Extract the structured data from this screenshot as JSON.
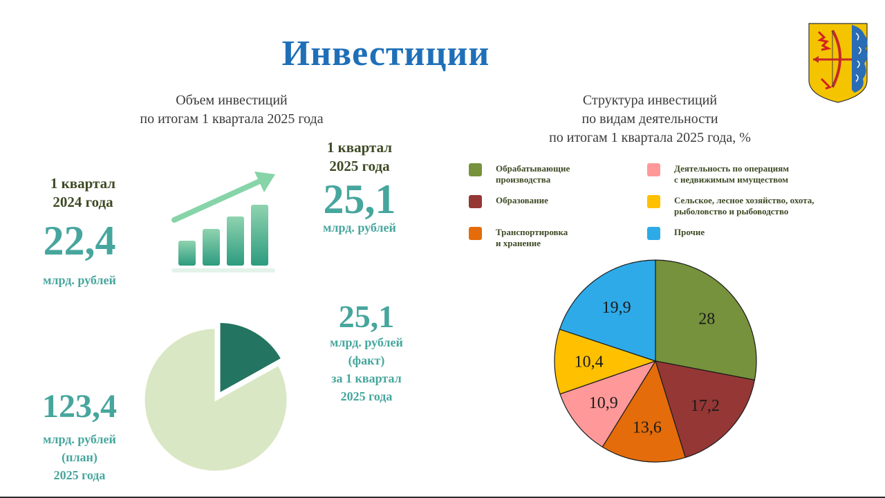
{
  "title": "Инвестиции",
  "left": {
    "subtitle": "Объем инвестиций\nпо итогам 1 квартала 2025 года",
    "q2024": {
      "label": "1 квартал\n2024 года",
      "value": "22,4",
      "unit": "млрд. рублей"
    },
    "q2025": {
      "label": "1 квартал\n2025 года",
      "value": "25,1",
      "unit": "млрд. рублей"
    },
    "plan": {
      "value": "123,4",
      "unit": "млрд. рублей\n(план)\n2025 года"
    },
    "fact": {
      "value": "25,1",
      "unit": "млрд. рублей\n(факт)\nза 1 квартал\n2025 года"
    },
    "growth_icon": "bar-growth-arrow-icon"
  },
  "right": {
    "subtitle": "Структура инвестиций\nпо видам деятельности\nпо итогам 1 квартала 2025 года, %"
  },
  "emblem_icon": "coat-of-arms-icon",
  "chart_data": [
    {
      "type": "pie",
      "title": "",
      "categories": [
        "123,4",
        "25,1"
      ],
      "values": [
        123.4,
        25.1
      ],
      "colors": [
        "#d9e7c4",
        "#237460"
      ],
      "exploded": [
        false,
        true
      ]
    },
    {
      "type": "pie",
      "title": "Структура инвестиций по видам деятельности по итогам 1 квартала 2025 года, %",
      "categories": [
        "Обрабатывающие производства",
        "Образование",
        "Транспортировка и хранение",
        "Деятельность по операциям с недвижимым имуществом",
        "Сельское, лесное хозяйство, охота, рыболовство и рыбоводство",
        "Прочие"
      ],
      "values": [
        28,
        17.2,
        13.6,
        10.9,
        10.4,
        19.9
      ],
      "labels": [
        "28",
        "17,2",
        "13,6",
        "10,9",
        "10,4",
        "19,9"
      ],
      "colors": [
        "#76923c",
        "#953735",
        "#e46c0a",
        "#ff9999",
        "#ffc000",
        "#2eaae8"
      ],
      "legend": [
        {
          "text": "Обрабатывающие\nпроизводства",
          "color": "#76923c"
        },
        {
          "text": "Деятельность по операциям\nс недвижимым имуществом",
          "color": "#ff9999"
        },
        {
          "text": "Образование",
          "color": "#953735"
        },
        {
          "text": "Сельское, лесное хозяйство, охота,\nрыболовство и рыбоводство",
          "color": "#ffc000"
        },
        {
          "text": "Транспортировка\nи хранение",
          "color": "#e46c0a"
        },
        {
          "text": "Прочие",
          "color": "#2eaae8"
        }
      ],
      "legend_position": "top"
    }
  ]
}
